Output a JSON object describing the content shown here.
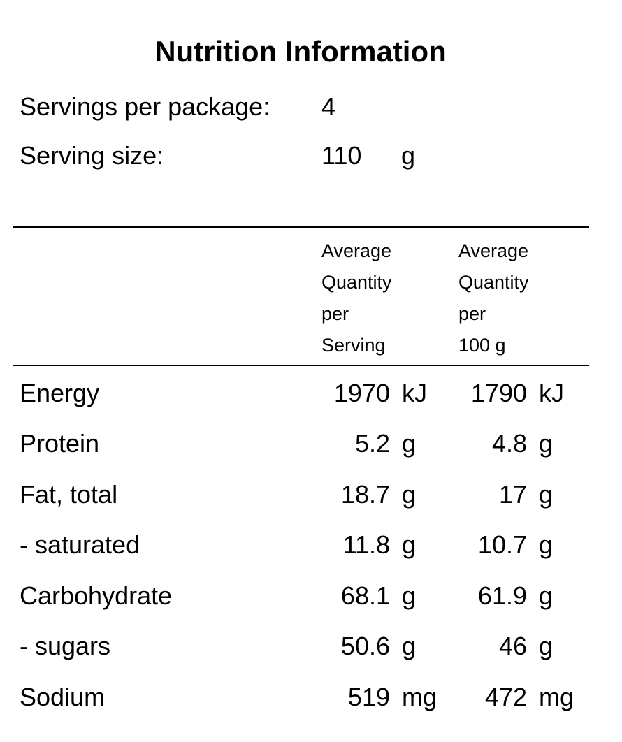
{
  "title": "Nutrition Information",
  "servings_per_package": {
    "label": "Servings per package:",
    "value": "4"
  },
  "serving_size": {
    "label": "Serving size:",
    "value": "110",
    "unit": "g"
  },
  "columns": {
    "per_serving": [
      "Average",
      "Quantity",
      "per",
      "Serving"
    ],
    "per_100g": [
      "Average",
      "Quantity",
      "per",
      "100 g"
    ]
  },
  "rows": [
    {
      "name": "Energy",
      "serving": "1970",
      "serving_unit": "kJ",
      "per100": "1790",
      "per100_unit": "kJ"
    },
    {
      "name": "Protein",
      "serving": "5.2",
      "serving_unit": "g",
      "per100": "4.8",
      "per100_unit": "g"
    },
    {
      "name": "Fat, total",
      "serving": "18.7",
      "serving_unit": "g",
      "per100": "17",
      "per100_unit": "g"
    },
    {
      "name": "- saturated",
      "serving": "11.8",
      "serving_unit": "g",
      "per100": "10.7",
      "per100_unit": "g"
    },
    {
      "name": "Carbohydrate",
      "serving": "68.1",
      "serving_unit": "g",
      "per100": "61.9",
      "per100_unit": "g"
    },
    {
      "name": "- sugars",
      "serving": "50.6",
      "serving_unit": "g",
      "per100": "46",
      "per100_unit": "g"
    },
    {
      "name": "Sodium",
      "serving": "519",
      "serving_unit": "mg",
      "per100": "472",
      "per100_unit": "mg"
    }
  ]
}
